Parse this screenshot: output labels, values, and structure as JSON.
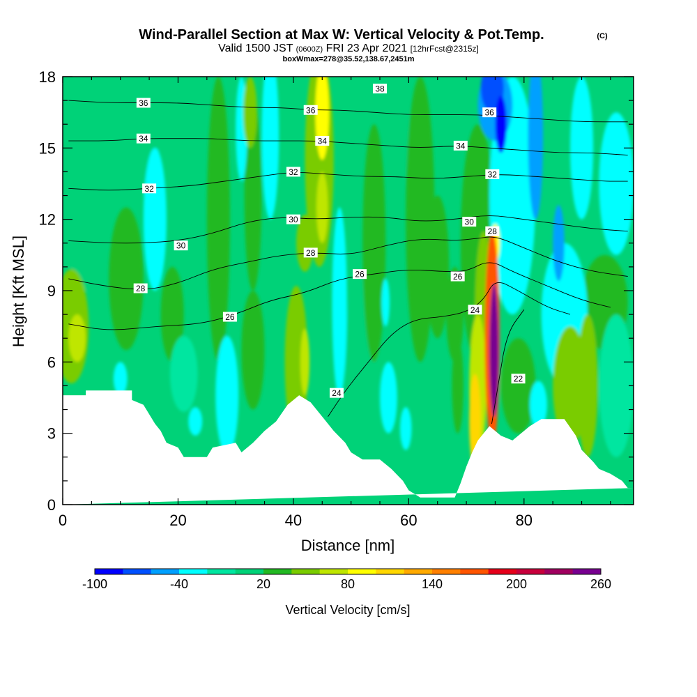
{
  "title": {
    "main": "Wind-Parallel Section at Max W: Vertical Velocity & Pot.Temp.",
    "copyright": "(C)",
    "valid_a": "Valid 1500 JST",
    "valid_b": "(0600Z)",
    "valid_c": "FRI 23 Apr 2021",
    "valid_d": "[12hrFcst@2315z]",
    "box": "boxWmax=278@35.52,138.67,2451m"
  },
  "chart_data": {
    "type": "heatmap",
    "xlabel": "Distance [nm]",
    "ylabel": "Height [Kft MSL]",
    "xlim": [
      0,
      99
    ],
    "ylim": [
      0,
      18
    ],
    "x_ticks": [
      0,
      20,
      40,
      60,
      80
    ],
    "y_ticks": [
      0,
      3,
      6,
      9,
      12,
      15,
      18
    ],
    "colorbar": {
      "label": "Vertical Velocity [cm/s]",
      "tick_labels": [
        "-100",
        "-40",
        "20",
        "80",
        "140",
        "200",
        "260"
      ],
      "tick_values": [
        -100,
        -40,
        20,
        80,
        140,
        200,
        260
      ],
      "levels": [
        -100,
        -80,
        -60,
        -40,
        -20,
        0,
        20,
        40,
        60,
        80,
        100,
        120,
        140,
        160,
        180,
        200,
        220,
        240,
        260
      ],
      "colors": [
        "#0000ff",
        "#0050ff",
        "#00a0ff",
        "#00ffff",
        "#00e6a0",
        "#00d278",
        "#22b922",
        "#7acc00",
        "#bfe600",
        "#ffff00",
        "#ffd700",
        "#ffaa00",
        "#ff8000",
        "#ff5500",
        "#e6001a",
        "#c8003c",
        "#a00060",
        "#780090"
      ]
    },
    "terrain_kft": [
      [
        0,
        4.6
      ],
      [
        4,
        4.6
      ],
      [
        4,
        4.8
      ],
      [
        12,
        4.8
      ],
      [
        12,
        4.4
      ],
      [
        14,
        4.2
      ],
      [
        15,
        3.8
      ],
      [
        16,
        3.4
      ],
      [
        17,
        3.1
      ],
      [
        18,
        2.6
      ],
      [
        20,
        2.4
      ],
      [
        21,
        2.0
      ],
      [
        25,
        2.0
      ],
      [
        26,
        2.4
      ],
      [
        30,
        2.6
      ],
      [
        31,
        2.2
      ],
      [
        33,
        2.6
      ],
      [
        35,
        3.1
      ],
      [
        37,
        3.5
      ],
      [
        39,
        4.2
      ],
      [
        41,
        4.6
      ],
      [
        43,
        4.3
      ],
      [
        45,
        3.7
      ],
      [
        47,
        3.1
      ],
      [
        49,
        2.6
      ],
      [
        50,
        2.2
      ],
      [
        52,
        1.9
      ],
      [
        55,
        1.9
      ],
      [
        57,
        1.5
      ],
      [
        59,
        1.0
      ],
      [
        60,
        0.6
      ],
      [
        62,
        0.3
      ],
      [
        68,
        0.3
      ],
      [
        69,
        0.9
      ],
      [
        70,
        1.6
      ],
      [
        71,
        2.2
      ],
      [
        72,
        2.7
      ],
      [
        74,
        3.3
      ],
      [
        76,
        2.9
      ],
      [
        78,
        2.7
      ],
      [
        79,
        2.9
      ],
      [
        81,
        3.3
      ],
      [
        83,
        3.6
      ],
      [
        87,
        3.6
      ],
      [
        89,
        2.9
      ],
      [
        90,
        2.3
      ],
      [
        92,
        1.8
      ],
      [
        93,
        1.5
      ],
      [
        95,
        1.3
      ],
      [
        97,
        1.0
      ],
      [
        98,
        0.7
      ],
      [
        99,
        0.7
      ]
    ],
    "w_features": [
      {
        "x": 1.5,
        "y": 7.5,
        "rx": 3.0,
        "ry": 2.4,
        "w": 45
      },
      {
        "x": 2.5,
        "y": 7.0,
        "rx": 1.5,
        "ry": 1.0,
        "w": 60
      },
      {
        "x": 4,
        "y": 13,
        "rx": 4,
        "ry": 4,
        "w": 15
      },
      {
        "x": 11,
        "y": 9.5,
        "rx": 3,
        "ry": 3,
        "w": 20
      },
      {
        "x": 14,
        "y": 16,
        "rx": 3,
        "ry": 3,
        "w": 15
      },
      {
        "x": 16,
        "y": 12,
        "rx": 2,
        "ry": 3,
        "w": -30
      },
      {
        "x": 10,
        "y": 5.3,
        "rx": 1.2,
        "ry": 0.7,
        "w": -30
      },
      {
        "x": 19,
        "y": 8,
        "rx": 2,
        "ry": 2,
        "w": 20
      },
      {
        "x": 21,
        "y": 5.5,
        "rx": 2.4,
        "ry": 1.6,
        "w": -20
      },
      {
        "x": 23,
        "y": 3.5,
        "rx": 1.2,
        "ry": 0.6,
        "w": -30
      },
      {
        "x": 27,
        "y": 12,
        "rx": 2,
        "ry": 6,
        "w": 20
      },
      {
        "x": 28.5,
        "y": 4.6,
        "rx": 2,
        "ry": 2.5,
        "w": -38
      },
      {
        "x": 31,
        "y": 15.8,
        "rx": 1,
        "ry": 2.2,
        "w": -35
      },
      {
        "x": 33,
        "y": 6.5,
        "rx": 2,
        "ry": 2.5,
        "w": 25
      },
      {
        "x": 33,
        "y": 13,
        "rx": 1.5,
        "ry": 4,
        "w": 22
      },
      {
        "x": 32.5,
        "y": 16.5,
        "rx": 1.2,
        "ry": 1.5,
        "w": 45
      },
      {
        "x": 36,
        "y": 15.5,
        "rx": 1.5,
        "ry": 3.5,
        "w": -28
      },
      {
        "x": 40.5,
        "y": 6,
        "rx": 2,
        "ry": 3.2,
        "w": 45
      },
      {
        "x": 42,
        "y": 6,
        "rx": 0.8,
        "ry": 1.4,
        "w": 68
      },
      {
        "x": 44.5,
        "y": 14.5,
        "rx": 2.5,
        "ry": 4.5,
        "w": 55
      },
      {
        "x": 45,
        "y": 16.5,
        "rx": 1.2,
        "ry": 2.0,
        "w": 85
      },
      {
        "x": 45,
        "y": 12.5,
        "rx": 1,
        "ry": 1.5,
        "w": 75
      },
      {
        "x": 42,
        "y": 11,
        "rx": 1.5,
        "ry": 1.2,
        "w": 50
      },
      {
        "x": 48,
        "y": 8.5,
        "rx": 1.3,
        "ry": 4,
        "w": -30
      },
      {
        "x": 52,
        "y": 6.5,
        "rx": 3,
        "ry": 3,
        "w": 10
      },
      {
        "x": 54,
        "y": 11,
        "rx": 2,
        "ry": 5,
        "w": 25
      },
      {
        "x": 56.5,
        "y": 4.5,
        "rx": 1.5,
        "ry": 1.5,
        "w": -30
      },
      {
        "x": 59.5,
        "y": 3.2,
        "rx": 1,
        "ry": 0.9,
        "w": -30
      },
      {
        "x": 56,
        "y": 8.5,
        "rx": 0.7,
        "ry": 1,
        "w": -28
      },
      {
        "x": 58,
        "y": 16,
        "rx": 2,
        "ry": 3,
        "w": 15
      },
      {
        "x": 62,
        "y": 12,
        "rx": 2.5,
        "ry": 6,
        "w": 25
      },
      {
        "x": 65,
        "y": 10,
        "rx": 2,
        "ry": 3,
        "w": 30
      },
      {
        "x": 68,
        "y": 8,
        "rx": 1.5,
        "ry": 2,
        "w": 25
      },
      {
        "x": 68.5,
        "y": 5,
        "rx": 1,
        "ry": 2,
        "w": 35
      },
      {
        "x": 72,
        "y": 5,
        "rx": 1.5,
        "ry": 3,
        "w": 60
      },
      {
        "x": 71.5,
        "y": 3.5,
        "rx": 1,
        "ry": 2,
        "w": 100
      },
      {
        "x": 72,
        "y": 11,
        "rx": 3,
        "ry": 5,
        "w": 25
      },
      {
        "x": 73,
        "y": 8,
        "rx": 1.5,
        "ry": 3.5,
        "w": 50
      },
      {
        "x": 74.5,
        "y": 7,
        "rx": 1.3,
        "ry": 4.5,
        "w": 160
      },
      {
        "x": 74.8,
        "y": 6.5,
        "rx": 0.8,
        "ry": 2.8,
        "w": 260
      },
      {
        "x": 75,
        "y": 11,
        "rx": 0.8,
        "ry": 0.8,
        "w": 80
      },
      {
        "x": 78,
        "y": 13,
        "rx": 4,
        "ry": 5,
        "w": -40
      },
      {
        "x": 75,
        "y": 16.8,
        "rx": 3,
        "ry": 1.5,
        "w": -55
      },
      {
        "x": 74.5,
        "y": 17.5,
        "rx": 2,
        "ry": 1,
        "w": -70
      },
      {
        "x": 76,
        "y": 16,
        "rx": 1,
        "ry": 1.2,
        "w": -85
      },
      {
        "x": 82,
        "y": 15.5,
        "rx": 1.3,
        "ry": 3.5,
        "w": -60
      },
      {
        "x": 86,
        "y": 11,
        "rx": 1,
        "ry": 1.6,
        "w": -60
      },
      {
        "x": 90,
        "y": 15,
        "rx": 2,
        "ry": 3,
        "w": -40
      },
      {
        "x": 87,
        "y": 8,
        "rx": 4,
        "ry": 3,
        "w": -22
      },
      {
        "x": 79,
        "y": 5,
        "rx": 3,
        "ry": 2,
        "w": 30
      },
      {
        "x": 82.5,
        "y": 4.2,
        "rx": 1.5,
        "ry": 1,
        "w": -30
      },
      {
        "x": 88,
        "y": 5,
        "rx": 3,
        "ry": 2.5,
        "w": 40
      },
      {
        "x": 91,
        "y": 5,
        "rx": 1.8,
        "ry": 3,
        "w": 55
      },
      {
        "x": 94,
        "y": 8.5,
        "rx": 4,
        "ry": 2,
        "w": 20
      },
      {
        "x": 96,
        "y": 5,
        "rx": 3,
        "ry": 3,
        "w": -20
      },
      {
        "x": 96,
        "y": 13.5,
        "rx": 3,
        "ry": 3,
        "w": -40
      }
    ],
    "theta_contours": [
      {
        "value": 22,
        "points": [
          [
            74.4,
            3.4
          ],
          [
            75.5,
            5.0
          ],
          [
            77,
            7.2
          ],
          [
            80,
            8.2
          ]
        ],
        "label_at": [
          79,
          5.3
        ]
      },
      {
        "value": 24,
        "points": [
          [
            46,
            3.7
          ],
          [
            49,
            4.8
          ],
          [
            53,
            6.0
          ],
          [
            57,
            7.2
          ],
          [
            61,
            7.8
          ],
          [
            66,
            7.9
          ],
          [
            70,
            8.1
          ],
          [
            73,
            8.6
          ],
          [
            75,
            9.5
          ],
          [
            79,
            9.0
          ],
          [
            84,
            8.3
          ],
          [
            88,
            8.0
          ]
        ],
        "label_at": [
          47.5,
          4.7
        ]
      },
      {
        "value": 26,
        "points": [
          [
            1,
            7.6
          ],
          [
            8,
            7.3
          ],
          [
            16,
            7.5
          ],
          [
            24,
            7.6
          ],
          [
            30,
            8.0
          ],
          [
            36,
            8.6
          ],
          [
            42,
            8.9
          ],
          [
            48,
            9.5
          ],
          [
            54,
            9.7
          ],
          [
            60,
            9.9
          ],
          [
            66,
            9.8
          ],
          [
            70,
            9.8
          ],
          [
            74,
            10.3
          ],
          [
            78,
            9.8
          ],
          [
            84,
            9.2
          ],
          [
            90,
            8.6
          ],
          [
            95,
            8.3
          ]
        ],
        "label_at": [
          29,
          7.9
        ]
      },
      {
        "value": 28,
        "points": [
          [
            1,
            9.5
          ],
          [
            7,
            9.2
          ],
          [
            14,
            9.0
          ],
          [
            20,
            9.3
          ],
          [
            26,
            9.9
          ],
          [
            32,
            10.2
          ],
          [
            38,
            10.5
          ],
          [
            44,
            10.6
          ],
          [
            50,
            10.5
          ],
          [
            56,
            10.9
          ],
          [
            62,
            11.2
          ],
          [
            68,
            11.1
          ],
          [
            72,
            11.2
          ],
          [
            75,
            11.3
          ],
          [
            80,
            10.8
          ],
          [
            86,
            10.2
          ],
          [
            92,
            9.8
          ],
          [
            98,
            9.6
          ]
        ],
        "label_at": [
          13.5,
          9.1
        ]
      },
      {
        "value": 30,
        "points": [
          [
            1,
            11.1
          ],
          [
            8,
            11.0
          ],
          [
            14,
            11.0
          ],
          [
            20,
            11.1
          ],
          [
            26,
            11.4
          ],
          [
            32,
            11.9
          ],
          [
            38,
            12.1
          ],
          [
            44,
            12.0
          ],
          [
            50,
            12.1
          ],
          [
            56,
            12.1
          ],
          [
            62,
            11.9
          ],
          [
            68,
            12.0
          ],
          [
            74,
            12.2
          ],
          [
            80,
            12.0
          ],
          [
            86,
            11.8
          ],
          [
            92,
            11.6
          ],
          [
            98,
            11.5
          ]
        ],
        "label_at": [
          20.5,
          10.9
        ]
      },
      {
        "value": 32,
        "points": [
          [
            1,
            13.3
          ],
          [
            8,
            13.2
          ],
          [
            15,
            13.3
          ],
          [
            22,
            13.4
          ],
          [
            28,
            13.6
          ],
          [
            34,
            13.8
          ],
          [
            40,
            14.0
          ],
          [
            46,
            13.9
          ],
          [
            52,
            13.8
          ],
          [
            58,
            13.8
          ],
          [
            64,
            13.7
          ],
          [
            70,
            13.8
          ],
          [
            76,
            13.9
          ],
          [
            82,
            13.8
          ],
          [
            88,
            13.7
          ],
          [
            94,
            13.6
          ],
          [
            98,
            13.6
          ]
        ],
        "label_at": [
          15,
          13.3
        ]
      },
      {
        "value": 34,
        "points": [
          [
            1,
            15.3
          ],
          [
            8,
            15.3
          ],
          [
            14,
            15.4
          ],
          [
            20,
            15.4
          ],
          [
            26,
            15.4
          ],
          [
            32,
            15.3
          ],
          [
            38,
            15.3
          ],
          [
            44,
            15.3
          ],
          [
            50,
            15.2
          ],
          [
            56,
            15.1
          ],
          [
            62,
            15.0
          ],
          [
            68,
            15.1
          ],
          [
            74,
            15.0
          ],
          [
            80,
            14.9
          ],
          [
            86,
            14.8
          ],
          [
            92,
            14.8
          ],
          [
            98,
            14.7
          ]
        ],
        "label_at": [
          14,
          15.4
        ]
      },
      {
        "value": 36,
        "points": [
          [
            1,
            17.0
          ],
          [
            8,
            16.9
          ],
          [
            14,
            16.9
          ],
          [
            20,
            16.9
          ],
          [
            26,
            16.8
          ],
          [
            32,
            16.7
          ],
          [
            38,
            16.7
          ],
          [
            43,
            16.6
          ],
          [
            48,
            16.6
          ],
          [
            54,
            16.5
          ],
          [
            60,
            16.4
          ],
          [
            66,
            16.4
          ],
          [
            72,
            16.4
          ],
          [
            78,
            16.3
          ],
          [
            84,
            16.2
          ],
          [
            90,
            16.1
          ],
          [
            98,
            16.1
          ]
        ],
        "label_at": [
          14,
          16.9
        ]
      }
    ],
    "theta_labels": [
      {
        "text": "38",
        "x": 55,
        "y": 17.5
      },
      {
        "text": "36",
        "x": 14,
        "y": 16.9
      },
      {
        "text": "36",
        "x": 43,
        "y": 16.6
      },
      {
        "text": "36",
        "x": 74,
        "y": 16.5
      },
      {
        "text": "34",
        "x": 14,
        "y": 15.4
      },
      {
        "text": "34",
        "x": 45,
        "y": 15.3
      },
      {
        "text": "34",
        "x": 69,
        "y": 15.1
      },
      {
        "text": "32",
        "x": 15,
        "y": 13.3
      },
      {
        "text": "32",
        "x": 40,
        "y": 14.0
      },
      {
        "text": "32",
        "x": 74.5,
        "y": 13.9
      },
      {
        "text": "30",
        "x": 20.5,
        "y": 10.9
      },
      {
        "text": "30",
        "x": 40,
        "y": 12.0
      },
      {
        "text": "30",
        "x": 70.5,
        "y": 11.9
      },
      {
        "text": "28",
        "x": 13.5,
        "y": 9.1
      },
      {
        "text": "28",
        "x": 43,
        "y": 10.6
      },
      {
        "text": "28",
        "x": 74.5,
        "y": 11.5
      },
      {
        "text": "26",
        "x": 29,
        "y": 7.9
      },
      {
        "text": "26",
        "x": 51.5,
        "y": 9.7
      },
      {
        "text": "26",
        "x": 68.5,
        "y": 9.6
      },
      {
        "text": "24",
        "x": 47.5,
        "y": 4.7
      },
      {
        "text": "24",
        "x": 71.5,
        "y": 8.2
      },
      {
        "text": "22",
        "x": 79,
        "y": 5.3
      }
    ]
  }
}
